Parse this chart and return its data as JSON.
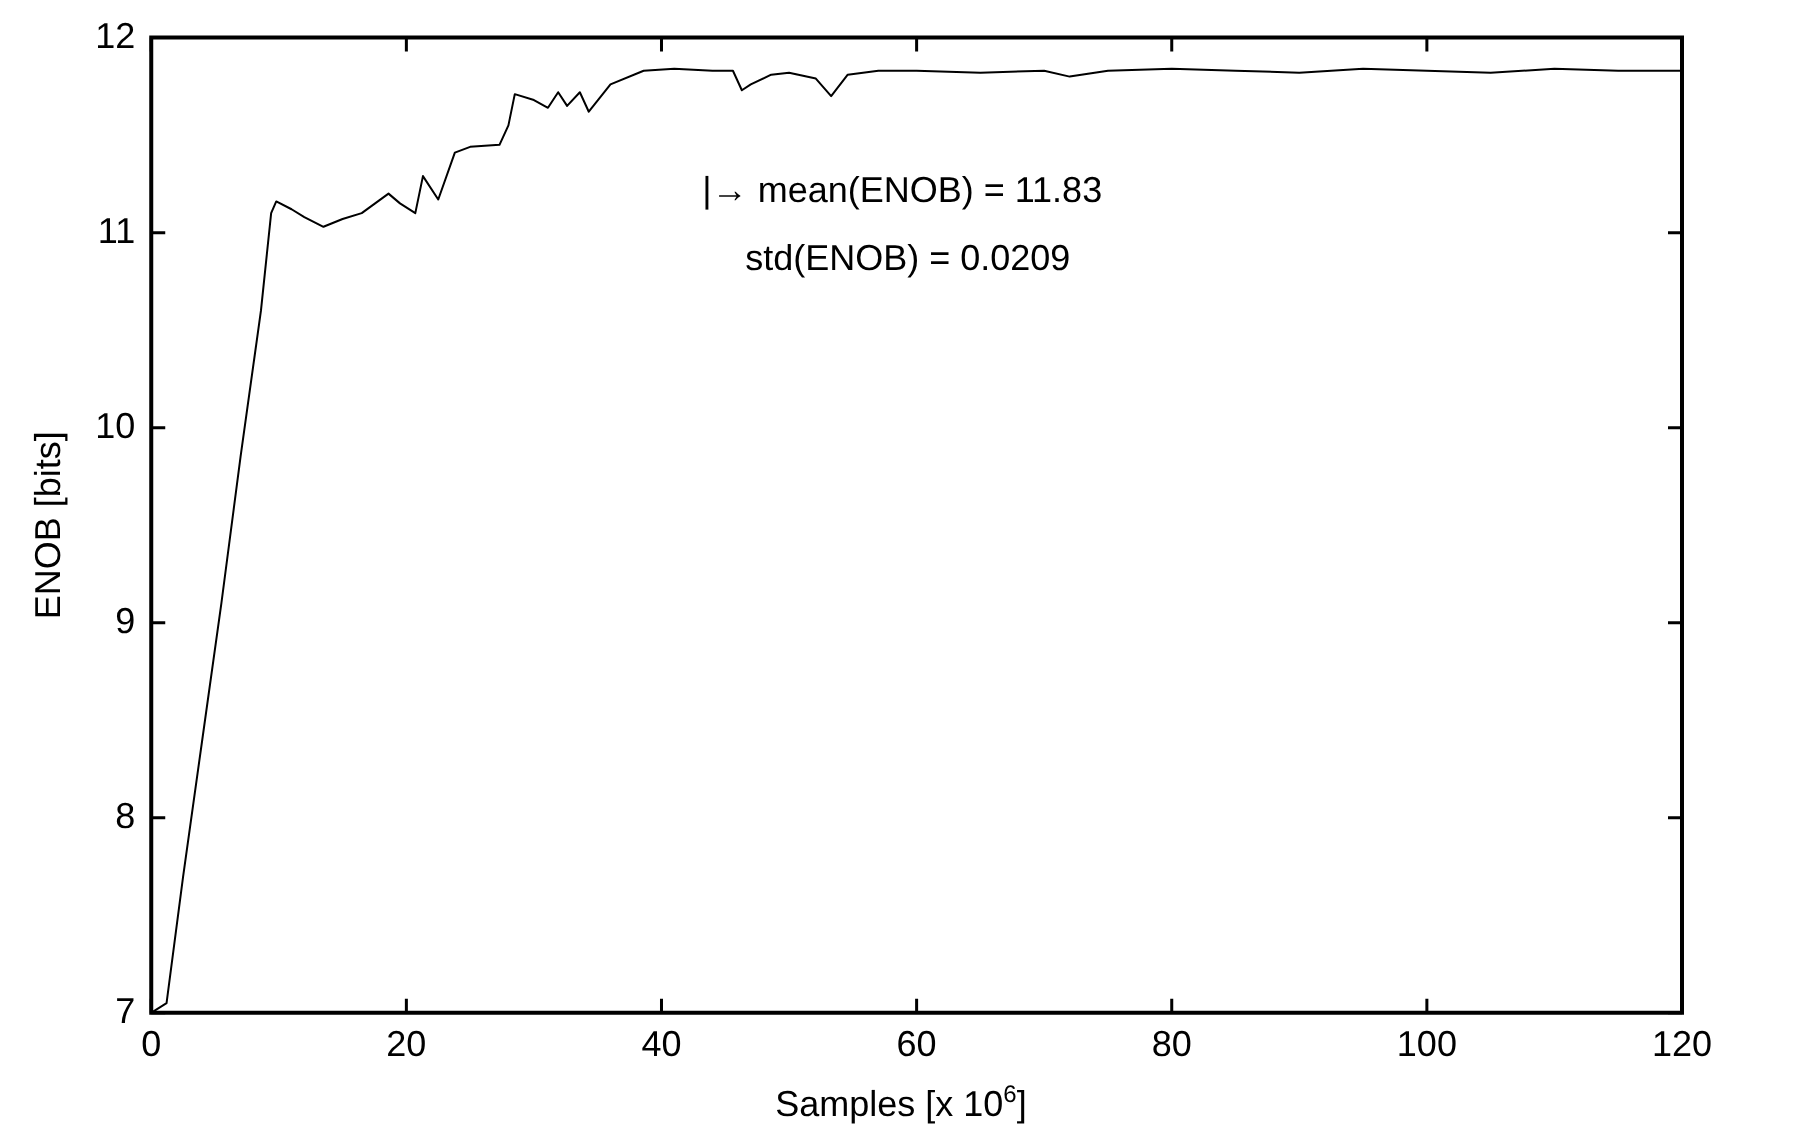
{
  "chart_data": {
    "type": "line",
    "xlabel": "Samples [x 10$^{6}$]",
    "ylabel": "ENOB [bits]",
    "annotations": [
      "|→ mean(ENOB) = 11.83",
      "std(ENOB) = 0.0209"
    ],
    "x": [
      0,
      1.2,
      2.5,
      4,
      5.5,
      7,
      8.6,
      9.4,
      9.8,
      11,
      12,
      13.5,
      15,
      16.5,
      18.6,
      19.5,
      20.7,
      21.3,
      22.5,
      23.8,
      25,
      27.3,
      28,
      28.5,
      30,
      31.1,
      31.9,
      32.6,
      33.6,
      34.3,
      36,
      38.6,
      41,
      44,
      45.6,
      46.3,
      47,
      48.6,
      50,
      52.1,
      53.3,
      54.6,
      57,
      60,
      65,
      70,
      72,
      75,
      80,
      85,
      90,
      95,
      100,
      105,
      110,
      115,
      120
    ],
    "series": [
      {
        "color": "#000000",
        "values": [
          7,
          7.05,
          7.7,
          8.4,
          9.1,
          9.85,
          10.6,
          11.1,
          11.16,
          11.12,
          11.08,
          11.03,
          11.07,
          11.1,
          11.2,
          11.15,
          11.1,
          11.29,
          11.17,
          11.41,
          11.44,
          11.45,
          11.55,
          11.71,
          11.68,
          11.64,
          11.72,
          11.65,
          11.72,
          11.62,
          11.76,
          11.83,
          11.84,
          11.83,
          11.83,
          11.73,
          11.76,
          11.81,
          11.82,
          11.79,
          11.7,
          11.81,
          11.83,
          11.83,
          11.82,
          11.83,
          11.8,
          11.83,
          11.84,
          11.83,
          11.82,
          11.84,
          11.83,
          11.82,
          11.84,
          11.83,
          11.83
        ]
      }
    ],
    "xlim": [
      0,
      120
    ],
    "xticks": [
      0,
      20,
      40,
      60,
      80,
      100,
      120
    ],
    "ylim": [
      7,
      12
    ],
    "yticks": [
      7,
      8,
      9,
      10,
      11,
      12
    ],
    "grid": false,
    "legend": false,
    "marker": "none",
    "line_style": "solid"
  }
}
